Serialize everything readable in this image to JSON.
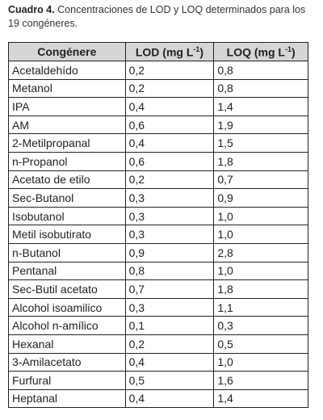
{
  "caption": {
    "label": "Cuadro 4.",
    "text": "Concentraciones de LOD y LOQ determinados para los 19 congéneres."
  },
  "table": {
    "header": [
      "Congénere",
      [
        "LOD (mg L",
        "-1",
        ")"
      ],
      [
        "LOQ (mg L",
        "-1",
        ")"
      ]
    ],
    "rows": [
      [
        "Acetaldehído",
        "0,2",
        "0,8"
      ],
      [
        "Metanol",
        "0,2",
        "0,8"
      ],
      [
        "IPA",
        "0,4",
        "1,4"
      ],
      [
        "AM",
        "0,6",
        "1,9"
      ],
      [
        "2-Metilpropanal",
        "0,4",
        "1,5"
      ],
      [
        "n-Propanol",
        "0,6",
        "1,8"
      ],
      [
        "Acetato de etilo",
        "0,2",
        "0,7"
      ],
      [
        "Sec-Butanol",
        "0,3",
        "0,9"
      ],
      [
        "Isobutanol",
        "0,3",
        "1,0"
      ],
      [
        "Metil isobutirato",
        "0,3",
        "1,0"
      ],
      [
        "n-Butanol",
        "0,9",
        "2,8"
      ],
      [
        "Pentanal",
        "0,8",
        "1,0"
      ],
      [
        "Sec-Butil acetato",
        "0,7",
        "1,8"
      ],
      [
        "Alcohol isoamilico",
        "0,3",
        "1,1"
      ],
      [
        "Alcohol n-amílico",
        "0,1",
        "0,3"
      ],
      [
        "Hexanal",
        "0,2",
        "0,5"
      ],
      [
        "3-Amilacetato",
        "0,4",
        "1,0"
      ],
      [
        "Furfural",
        "0,5",
        "1,6"
      ],
      [
        "Heptanal",
        "0,4",
        "1,4"
      ]
    ]
  }
}
